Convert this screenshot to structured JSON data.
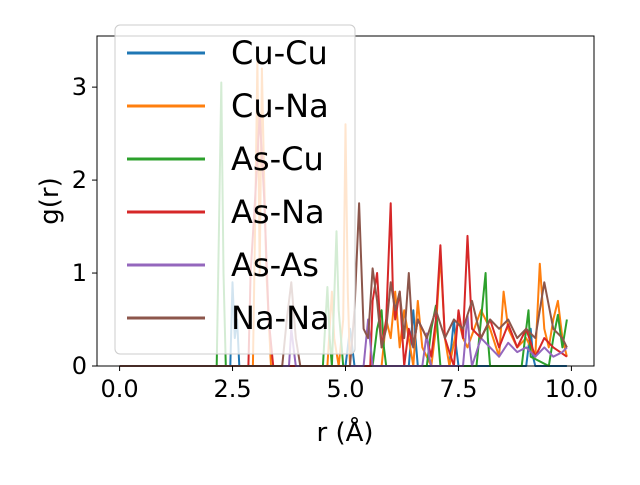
{
  "chart_data": {
    "type": "line",
    "title": "",
    "xlabel": "r (Å)",
    "ylabel": "g(r)",
    "xlim": [
      -0.5,
      10.5
    ],
    "ylim": [
      0,
      3.55
    ],
    "xticks": [
      0.0,
      2.5,
      5.0,
      7.5,
      10.0
    ],
    "xtick_labels": [
      "0.0",
      "2.5",
      "5.0",
      "7.5",
      "10.0"
    ],
    "yticks": [
      0,
      1,
      2,
      3
    ],
    "ytick_labels": [
      "0",
      "1",
      "2",
      "3"
    ],
    "grid": false,
    "legend_position": "top-left",
    "series": [
      {
        "name": "Cu-Cu",
        "color": "#1f77b4",
        "x": [
          0.0,
          2.45,
          2.5,
          2.55,
          2.6,
          2.65,
          5.0,
          5.1,
          5.15,
          5.2,
          6.4,
          6.5,
          6.55,
          6.6,
          7.3,
          7.4,
          7.45,
          7.5,
          9.0,
          9.1,
          9.15,
          9.2,
          9.9
        ],
        "y": [
          0,
          0,
          0.9,
          0.3,
          0.5,
          0,
          0,
          0.4,
          0.2,
          0,
          0,
          0.6,
          0.3,
          0,
          0,
          0.5,
          0.2,
          0,
          0,
          0.4,
          0.1,
          0,
          0
        ]
      },
      {
        "name": "Cu-Na",
        "color": "#ff7f0e",
        "x": [
          0.0,
          2.95,
          3.0,
          3.05,
          3.1,
          3.15,
          3.2,
          3.25,
          3.35,
          3.45,
          4.6,
          4.7,
          4.75,
          4.85,
          4.95,
          5.0,
          5.05,
          5.1,
          5.8,
          5.9,
          6.0,
          6.1,
          6.2,
          6.3,
          6.5,
          6.6,
          6.7,
          6.9,
          7.0,
          7.1,
          7.2,
          7.3,
          7.5,
          7.6,
          7.7,
          8.0,
          8.2,
          8.4,
          8.5,
          8.6,
          8.8,
          9.0,
          9.2,
          9.3,
          9.4,
          9.5,
          9.6,
          9.7,
          9.8,
          9.9
        ],
        "y": [
          0,
          0,
          1.5,
          3.3,
          1.0,
          3.2,
          2.0,
          1.0,
          0,
          0,
          0,
          0.8,
          0.3,
          0,
          0.5,
          2.6,
          0.8,
          0,
          0,
          0.5,
          0.3,
          0.8,
          0.2,
          0.6,
          0,
          0.7,
          0.2,
          0,
          0.4,
          1.2,
          0.3,
          0,
          0.5,
          0.3,
          0.2,
          0.6,
          0.4,
          0.1,
          0.8,
          0.4,
          0.2,
          0.3,
          0.1,
          1.1,
          0.4,
          0.2,
          0.5,
          0.7,
          0.3,
          0.1
        ]
      },
      {
        "name": "As-Cu",
        "color": "#2ca02c",
        "x": [
          0.0,
          2.15,
          2.2,
          2.25,
          2.3,
          2.35,
          4.5,
          4.6,
          4.65,
          4.7,
          4.8,
          4.85,
          4.95,
          5.6,
          5.7,
          5.8,
          5.85,
          5.9,
          6.8,
          6.9,
          7.0,
          7.05,
          7.1,
          7.9,
          8.0,
          8.1,
          8.15,
          8.2,
          8.9,
          9.0,
          9.05,
          9.1,
          9.5,
          9.6,
          9.7,
          9.8,
          9.9
        ],
        "y": [
          0,
          0,
          1.5,
          3.05,
          1.0,
          0,
          0,
          0.85,
          0.3,
          0,
          1.45,
          0.6,
          0,
          0,
          0.4,
          0.6,
          0.2,
          0,
          0,
          0.4,
          0.65,
          0.3,
          0,
          0,
          0.5,
          1.0,
          0.3,
          0,
          0,
          0.4,
          0.6,
          0.1,
          0,
          0.3,
          0.55,
          0.2,
          0.5
        ]
      },
      {
        "name": "As-Na",
        "color": "#d62728",
        "x": [
          0.0,
          2.85,
          2.9,
          3.0,
          3.1,
          3.2,
          3.3,
          3.4,
          5.55,
          5.6,
          5.7,
          5.8,
          5.9,
          6.0,
          6.05,
          6.1,
          6.2,
          6.3,
          6.4,
          6.5,
          6.6,
          6.8,
          6.9,
          7.0,
          7.1,
          7.2,
          7.4,
          7.5,
          7.6,
          7.7,
          7.8,
          8.0,
          8.2,
          8.4,
          8.6,
          8.8,
          9.0,
          9.2,
          9.4,
          9.6,
          9.9
        ],
        "y": [
          0,
          0,
          1.0,
          1.8,
          2.7,
          1.8,
          0.5,
          0,
          0,
          0.7,
          1.0,
          0.2,
          0.5,
          1.75,
          0.8,
          0.5,
          0.8,
          0,
          0.4,
          0.2,
          0.5,
          0.3,
          0.1,
          0.5,
          1.3,
          0.3,
          0,
          0.6,
          0.3,
          1.4,
          0.4,
          0.3,
          0.5,
          0.2,
          0.45,
          0.2,
          0.4,
          0.1,
          0.3,
          0.2,
          0.1
        ]
      },
      {
        "name": "As-As",
        "color": "#9467bd",
        "x": [
          0.0,
          3.75,
          3.8,
          3.85,
          3.9,
          5.4,
          5.5,
          5.55,
          5.6,
          6.7,
          6.8,
          6.85,
          6.9,
          7.6,
          7.7,
          7.75,
          7.8,
          8.0,
          8.2,
          8.4,
          8.6,
          8.8,
          9.0,
          9.2,
          9.4,
          9.6,
          9.8,
          9.9
        ],
        "y": [
          0,
          0,
          0.4,
          0.2,
          0,
          0,
          0.5,
          0.25,
          0,
          0,
          0.35,
          0.1,
          0,
          0,
          0.55,
          0.2,
          0,
          0.3,
          0.2,
          0.1,
          0.25,
          0.15,
          0.2,
          0.1,
          0.2,
          0.1,
          0.15,
          0.2
        ]
      },
      {
        "name": "Na-Na",
        "color": "#8c564b",
        "x": [
          0.0,
          3.6,
          3.7,
          3.8,
          3.9,
          4.0,
          5.1,
          5.2,
          5.3,
          5.4,
          5.5,
          5.6,
          5.7,
          5.8,
          5.9,
          6.0,
          6.1,
          6.2,
          6.3,
          6.4,
          6.5,
          6.6,
          6.8,
          7.0,
          7.2,
          7.4,
          7.6,
          7.8,
          8.0,
          8.2,
          8.4,
          8.6,
          8.8,
          9.0,
          9.2,
          9.4,
          9.6,
          9.8,
          9.9
        ],
        "y": [
          0,
          0,
          0.5,
          0.9,
          0.3,
          0,
          0,
          0.6,
          1.75,
          0.4,
          0.3,
          1.05,
          0.7,
          0.2,
          0.4,
          0.9,
          0.6,
          0.8,
          0.3,
          1.0,
          0.2,
          0.5,
          0.3,
          0.6,
          0.3,
          0.5,
          0.4,
          0.7,
          0.3,
          0.5,
          0.4,
          0.5,
          0.3,
          0.4,
          0.3,
          0.9,
          0.4,
          0.3,
          0.2
        ]
      }
    ]
  }
}
